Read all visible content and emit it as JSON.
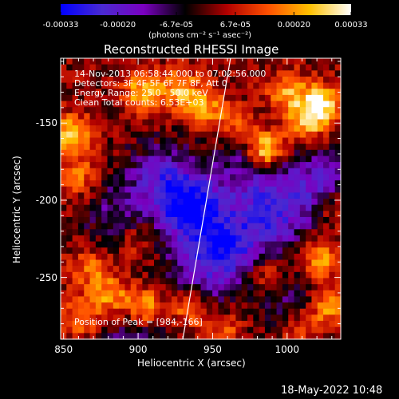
{
  "chart_data": {
    "type": "heatmap",
    "title": "Reconstructed RHESSI Image",
    "xlabel": "Heliocentric X (arcsec)",
    "ylabel": "Heliocentric Y (arcsec)",
    "x_ticks": [
      "850",
      "900",
      "950",
      "1000"
    ],
    "x_tick_values": [
      850,
      900,
      950,
      1000
    ],
    "y_ticks": [
      "-150",
      "-200",
      "-250"
    ],
    "y_tick_values": [
      -150,
      -200,
      -250
    ],
    "xlim": [
      848,
      1036
    ],
    "ylim": [
      -290,
      -108
    ],
    "colorbar": {
      "ticks": [
        "-0.00033",
        "-0.00020",
        "-6.7e-05",
        "6.7e-05",
        "0.00020",
        "0.00033"
      ],
      "tick_values": [
        -0.00033,
        -0.0002,
        -6.7e-05,
        6.7e-05,
        0.0002,
        0.00033
      ],
      "unit_label": "(photons cm⁻² s⁻¹ asec⁻²)",
      "range": [
        -0.00033,
        0.00033
      ],
      "colors": [
        "#0000ff",
        "#4a2ad0",
        "#7a00c0",
        "#000000",
        "#b00000",
        "#ff5000",
        "#ffc000",
        "#ffffff"
      ]
    },
    "annotations": [
      "14-Nov-2013 06:58:44.000 to 07:02:56.000",
      "Detectors: 3F 4F 5F 6F 7F 8F, Att 0",
      "Energy Range: 25.0 - 50.0 keV",
      "Clean     Total counts: 6.53E+03"
    ],
    "peak_label": "Position of Peak = [984,-166]",
    "peak": [
      984,
      -166
    ],
    "limb": [
      [
        930,
        -290
      ],
      [
        962,
        -108
      ]
    ],
    "hot_spots": [
      {
        "x": 985,
        "y": -168,
        "value": 0.00033
      },
      {
        "x": 1022,
        "y": -138,
        "value": 0.0003
      },
      {
        "x": 855,
        "y": -158,
        "value": 0.00026
      },
      {
        "x": 903,
        "y": -130,
        "value": 0.00022
      },
      {
        "x": 928,
        "y": -128,
        "value": 0.0002
      },
      {
        "x": 945,
        "y": -140,
        "value": 0.00018
      },
      {
        "x": 1000,
        "y": -130,
        "value": 0.00018
      },
      {
        "x": 1012,
        "y": -150,
        "value": 0.0002
      },
      {
        "x": 860,
        "y": -185,
        "value": 0.00015
      },
      {
        "x": 868,
        "y": -245,
        "value": 0.00014
      },
      {
        "x": 882,
        "y": -262,
        "value": 0.00018
      },
      {
        "x": 905,
        "y": -270,
        "value": 0.00025
      },
      {
        "x": 935,
        "y": -270,
        "value": 0.0002
      },
      {
        "x": 862,
        "y": -275,
        "value": 0.00016
      },
      {
        "x": 988,
        "y": -250,
        "value": 0.00016
      },
      {
        "x": 1022,
        "y": -238,
        "value": 0.0002
      },
      {
        "x": 1028,
        "y": -270,
        "value": 0.00018
      },
      {
        "x": 1008,
        "y": -282,
        "value": 0.00014
      },
      {
        "x": 958,
        "y": -285,
        "value": 0.00012
      },
      {
        "x": 1030,
        "y": -205,
        "value": 0.00012
      },
      {
        "x": 900,
        "y": -225,
        "value": 0.0001
      },
      {
        "x": 965,
        "y": -150,
        "value": 0.00012
      }
    ],
    "cold_spots": [
      {
        "x": 935,
        "y": -205,
        "value": -0.00033
      },
      {
        "x": 960,
        "y": -230,
        "value": -0.00025
      },
      {
        "x": 990,
        "y": -210,
        "value": -0.00022
      },
      {
        "x": 1020,
        "y": -190,
        "value": -0.0002
      },
      {
        "x": 915,
        "y": -185,
        "value": -0.00018
      },
      {
        "x": 975,
        "y": -180,
        "value": -0.00016
      },
      {
        "x": 940,
        "y": -250,
        "value": -0.00015
      },
      {
        "x": 900,
        "y": -290,
        "value": -0.00014
      },
      {
        "x": 1000,
        "y": -265,
        "value": -0.00012
      },
      {
        "x": 885,
        "y": -210,
        "value": -0.00012
      }
    ]
  },
  "footer": {
    "timestamp": "18-May-2022 10:48"
  }
}
